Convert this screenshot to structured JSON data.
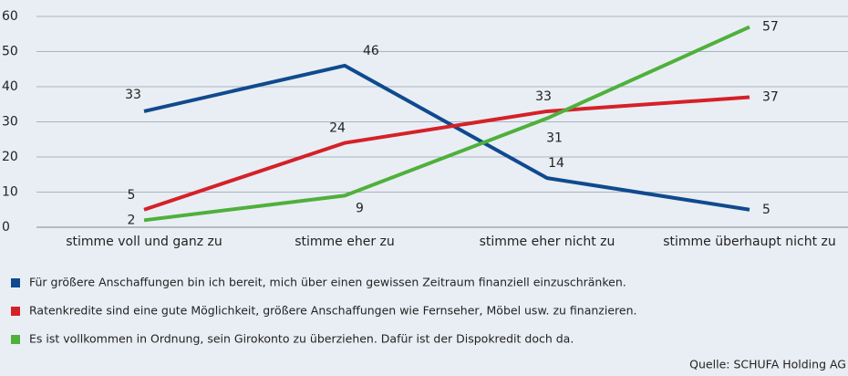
{
  "chart_data": {
    "type": "line",
    "categories": [
      "stimme voll und ganz zu",
      "stimme eher zu",
      "stimme eher nicht zu",
      "stimme überhaupt nicht zu"
    ],
    "series": [
      {
        "name": "Für größere Anschaffungen bin ich bereit, mich über einen gewissen Zeitraum finanziell einzuschränken.",
        "color": "#0f4a8e",
        "values": [
          33,
          46,
          14,
          5
        ]
      },
      {
        "name": "Ratenkredite sind eine gute Möglichkeit, größere Anschaffungen wie Fernseher, Möbel usw. zu finanzieren.",
        "color": "#d42128",
        "values": [
          5,
          24,
          33,
          37
        ]
      },
      {
        "name": "Es ist vollkommen in Ordnung, sein Girokonto zu überziehen. Dafür ist der Dispokredit doch da.",
        "color": "#4fb03b",
        "values": [
          2,
          9,
          31,
          57
        ]
      }
    ],
    "ylim": [
      0,
      60
    ],
    "yticks": [
      0,
      10,
      20,
      30,
      40,
      50,
      60
    ],
    "grid": true,
    "source": "Quelle: SCHUFA Holding AG"
  }
}
